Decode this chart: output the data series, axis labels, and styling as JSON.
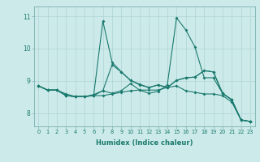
{
  "title": "",
  "xlabel": "Humidex (Indice chaleur)",
  "ylabel": "",
  "bg_color": "#cdeaea",
  "grid_color": "#aed4d4",
  "line_color": "#1a7a6e",
  "xlim": [
    -0.5,
    23.5
  ],
  "ylim": [
    7.6,
    11.3
  ],
  "yticks": [
    8,
    9,
    10,
    11
  ],
  "ytick_labels": [
    "8",
    "9",
    "10",
    "11"
  ],
  "xtick_labels": [
    "0",
    "1",
    "2",
    "3",
    "4",
    "5",
    "6",
    "7",
    "8",
    "9",
    "10",
    "11",
    "12",
    "13",
    "14",
    "15",
    "16",
    "17",
    "18",
    "19",
    "20",
    "21",
    "22",
    "23"
  ],
  "series": [
    [
      8.85,
      8.72,
      8.72,
      8.6,
      8.52,
      8.52,
      8.58,
      8.7,
      9.5,
      9.28,
      9.02,
      8.9,
      8.8,
      8.88,
      8.8,
      9.02,
      9.1,
      9.12,
      9.32,
      9.28,
      8.62,
      8.42,
      7.8,
      7.75
    ],
    [
      8.85,
      8.72,
      8.72,
      8.55,
      8.52,
      8.52,
      8.55,
      8.55,
      8.6,
      8.65,
      8.7,
      8.72,
      8.72,
      8.72,
      8.8,
      8.85,
      8.7,
      8.65,
      8.6,
      8.6,
      8.55,
      8.35,
      7.8,
      7.75
    ],
    [
      8.85,
      8.72,
      8.72,
      8.55,
      8.52,
      8.52,
      8.55,
      10.85,
      9.58,
      9.28,
      9.02,
      8.88,
      8.8,
      8.88,
      8.8,
      9.02,
      9.1,
      9.12,
      9.32,
      9.28,
      8.62,
      8.42,
      7.8,
      7.75
    ],
    [
      8.85,
      8.72,
      8.72,
      8.55,
      8.52,
      8.52,
      8.55,
      8.7,
      8.62,
      8.7,
      8.92,
      8.72,
      8.62,
      8.68,
      8.88,
      10.95,
      10.58,
      10.05,
      9.1,
      9.1,
      8.62,
      8.42,
      7.8,
      7.75
    ]
  ]
}
